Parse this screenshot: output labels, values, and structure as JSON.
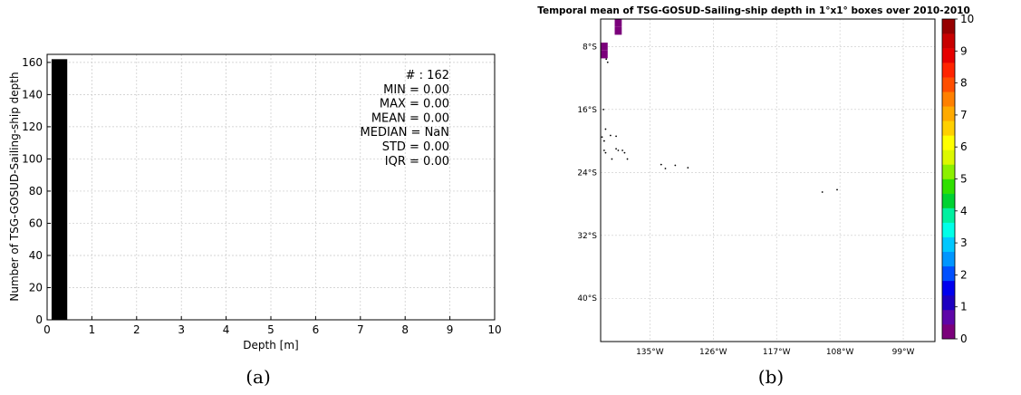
{
  "chart_data": [
    {
      "type": "bar",
      "xlabel": "Depth [m]",
      "ylabel": "Number of TSG-GOSUD-Sailing-ship depth",
      "xlim": [
        0,
        10
      ],
      "ylim": [
        0,
        165
      ],
      "x_ticks": [
        "0",
        "1",
        "2",
        "3",
        "4",
        "5",
        "6",
        "7",
        "8",
        "9",
        "10"
      ],
      "y_ticks": [
        "0",
        "20",
        "40",
        "60",
        "80",
        "100",
        "120",
        "140",
        "160"
      ],
      "bins": [
        {
          "x0": 0.1,
          "x1": 0.45,
          "value": 162
        }
      ],
      "bar_color": "#000000",
      "grid": true,
      "stats": [
        "# : 162",
        "MIN =  0.00",
        "MAX =  0.00",
        "MEAN =  0.00",
        "MEDIAN = NaN",
        "STD =  0.00",
        "IQR =  0.00"
      ],
      "caption": "(a)"
    },
    {
      "type": "heatmap",
      "title": "Temporal mean of TSG-GOSUD-Sailing-ship depth in 1°x1° boxes over 2010-2010",
      "lon_range": [
        -142,
        -94.5
      ],
      "lat_range": [
        -45.5,
        -4.5
      ],
      "lon_ticks": [
        -135,
        -126,
        -117,
        -108,
        -99
      ],
      "lon_tick_labels": [
        "135°W",
        "126°W",
        "117°W",
        "108°W",
        "99°W"
      ],
      "lat_ticks": [
        -8,
        -16,
        -24,
        -32,
        -40
      ],
      "lat_tick_labels": [
        "8°S",
        "16°S",
        "24°S",
        "32°S",
        "40°S"
      ],
      "cells": [
        {
          "lon": -140,
          "lat": -4.5,
          "value": 0
        },
        {
          "lon": -140,
          "lat": -5.5,
          "value": 0
        },
        {
          "lon": -142,
          "lat": -7.5,
          "value": 0
        },
        {
          "lon": -142,
          "lat": -8.5,
          "value": 0
        }
      ],
      "islands": [
        [
          -141.4,
          -9.2
        ],
        [
          -141.2,
          -9.6
        ],
        [
          -141.0,
          -10.0
        ],
        [
          -141.6,
          -16.0
        ],
        [
          -141.3,
          -18.5
        ],
        [
          -141.8,
          -19.5
        ],
        [
          -141.5,
          -20.0
        ],
        [
          -140.6,
          -19.3
        ],
        [
          -139.8,
          -19.4
        ],
        [
          -141.5,
          -21.2
        ],
        [
          -141.3,
          -21.5
        ],
        [
          -139.8,
          -21.0
        ],
        [
          -139.5,
          -21.2
        ],
        [
          -138.9,
          -21.2
        ],
        [
          -138.6,
          -21.5
        ],
        [
          -140.4,
          -22.3
        ],
        [
          -138.2,
          -22.3
        ],
        [
          -133.4,
          -23.0
        ],
        [
          -132.8,
          -23.5
        ],
        [
          -131.4,
          -23.1
        ],
        [
          -129.6,
          -23.4
        ],
        [
          -110.5,
          -26.5
        ],
        [
          -108.4,
          -26.2
        ]
      ],
      "colorbar": {
        "min": 0,
        "max": 10,
        "ticks": [
          "0",
          "1",
          "2",
          "3",
          "4",
          "5",
          "6",
          "7",
          "8",
          "9",
          "10"
        ]
      },
      "colormap": [
        "#7b007b",
        "#5e06a8",
        "#1d00c0",
        "#0000ee",
        "#0050ff",
        "#0096ff",
        "#00c8ff",
        "#00ffe8",
        "#00f0a0",
        "#00d232",
        "#30e000",
        "#8cf000",
        "#dcf800",
        "#ffff00",
        "#ffd000",
        "#ffaa00",
        "#ff8000",
        "#ff4e00",
        "#ff2400",
        "#e60000",
        "#c80000",
        "#960000"
      ],
      "grid": true,
      "caption": "(b)"
    }
  ]
}
